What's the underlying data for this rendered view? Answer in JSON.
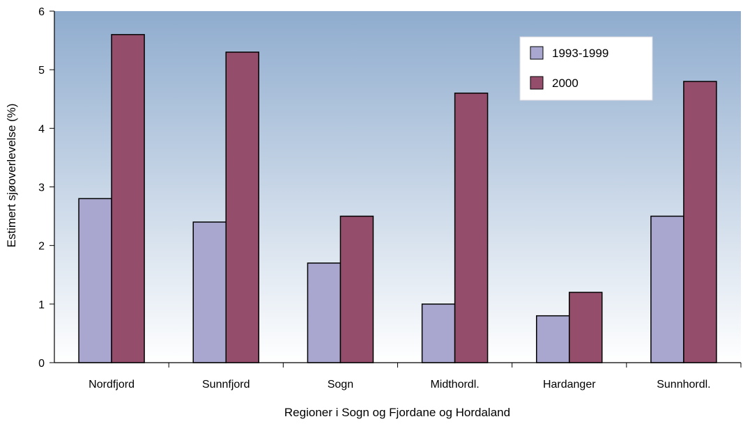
{
  "chart_data": {
    "type": "bar",
    "categories": [
      "Nordfjord",
      "Sunnfjord",
      "Sogn",
      "Midthordl.",
      "Hardanger",
      "Sunnhordl."
    ],
    "series": [
      {
        "name": "1993-1999",
        "values": [
          2.8,
          2.4,
          1.7,
          1.0,
          0.8,
          2.5
        ],
        "color": "#a9a7d0"
      },
      {
        "name": "2000",
        "values": [
          5.6,
          5.3,
          2.5,
          4.6,
          1.2,
          4.8
        ],
        "color": "#944e6c"
      }
    ],
    "xlabel": "Regioner i Sogn og Fjordane og Hordaland",
    "ylabel": "Estimert sjøoverlevelse (%)",
    "ylim": [
      0,
      6
    ],
    "yticks": [
      0,
      1,
      2,
      3,
      4,
      5,
      6
    ],
    "grid": false,
    "legend_position": "top-right",
    "background_gradient": [
      "#8facce",
      "#ffffff"
    ]
  }
}
